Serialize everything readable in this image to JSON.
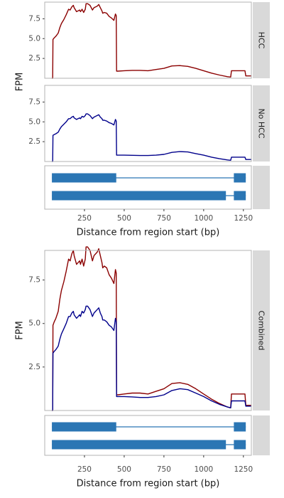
{
  "chart_data": [
    {
      "type": "line",
      "group": "Top figure",
      "ylabel": "FPM",
      "xlabel": "Distance from region start (bp)",
      "xlim": [
        0,
        1300
      ],
      "x_ticks": [
        250,
        500,
        750,
        1000,
        1250
      ],
      "panels": [
        {
          "strip": "HCC",
          "ylim": [
            0,
            9.6
          ],
          "y_ticks": [
            2.5,
            5.0,
            7.5
          ],
          "y_tick_labels": [
            "2.5",
            "5.0",
            "7.5"
          ],
          "series": [
            {
              "color": "#8b0000",
              "x": [
                45,
                50,
                52,
                60,
                70,
                85,
                95,
                105,
                120,
                135,
                150,
                160,
                170,
                180,
                185,
                200,
                210,
                220,
                225,
                235,
                245,
                255,
                260,
                270,
                285,
                300,
                310,
                320,
                330,
                340,
                350,
                360,
                365,
                375,
                390,
                405,
                420,
                435,
                445,
                450,
                452,
                460,
                500,
                550,
                600,
                650,
                700,
                750,
                800,
                850,
                900,
                950,
                1000,
                1050,
                1100,
                1150,
                1170,
                1175,
                1200,
                1230,
                1260,
                1265,
                1270,
                1300
              ],
              "y": [
                0,
                0,
                4.9,
                5.1,
                5.3,
                5.7,
                6.4,
                6.9,
                7.4,
                8.0,
                8.7,
                8.6,
                9.0,
                9.2,
                8.9,
                8.4,
                8.5,
                8.6,
                8.4,
                8.7,
                8.3,
                8.7,
                9.4,
                9.4,
                9.2,
                8.6,
                8.9,
                9.0,
                9.1,
                9.3,
                8.9,
                8.5,
                8.2,
                8.3,
                8.2,
                7.8,
                7.6,
                7.3,
                8.1,
                7.9,
                0.9,
                0.9,
                0.95,
                1.0,
                1.0,
                0.95,
                1.1,
                1.25,
                1.55,
                1.6,
                1.5,
                1.25,
                0.95,
                0.65,
                0.4,
                0.2,
                0.15,
                0.95,
                0.95,
                0.95,
                0.95,
                0.3,
                0.3,
                0.3
              ]
            }
          ]
        },
        {
          "strip": "No HCC",
          "ylim": [
            0,
            9.6
          ],
          "y_ticks": [
            2.5,
            5.0,
            7.5
          ],
          "y_tick_labels": [
            "2.5",
            "5.0",
            "7.5"
          ],
          "series": [
            {
              "color": "#00008b",
              "x": [
                45,
                50,
                52,
                60,
                70,
                85,
                95,
                105,
                120,
                135,
                150,
                160,
                170,
                180,
                185,
                200,
                210,
                220,
                225,
                235,
                245,
                255,
                260,
                270,
                285,
                300,
                310,
                320,
                330,
                340,
                350,
                360,
                365,
                375,
                390,
                405,
                420,
                435,
                445,
                450,
                452,
                460,
                500,
                550,
                600,
                650,
                700,
                750,
                800,
                850,
                900,
                950,
                1000,
                1050,
                1100,
                1150,
                1170,
                1175,
                1200,
                1230,
                1260,
                1265,
                1270,
                1300
              ],
              "y": [
                0,
                0,
                3.3,
                3.4,
                3.5,
                3.7,
                4.1,
                4.4,
                4.7,
                5.0,
                5.4,
                5.4,
                5.6,
                5.7,
                5.5,
                5.3,
                5.4,
                5.5,
                5.4,
                5.7,
                5.6,
                5.8,
                6.0,
                6.0,
                5.8,
                5.4,
                5.6,
                5.7,
                5.8,
                5.9,
                5.6,
                5.4,
                5.2,
                5.2,
                5.1,
                4.9,
                4.8,
                4.6,
                5.3,
                5.1,
                0.8,
                0.8,
                0.8,
                0.78,
                0.75,
                0.75,
                0.8,
                0.9,
                1.15,
                1.25,
                1.2,
                1.0,
                0.8,
                0.55,
                0.35,
                0.2,
                0.15,
                0.55,
                0.55,
                0.55,
                0.55,
                0.25,
                0.25,
                0.25
              ]
            }
          ]
        }
      ],
      "transcripts": [
        {
          "exons": [
            [
              45,
              450
            ],
            [
              1190,
              1265
            ]
          ]
        },
        {
          "exons": [
            [
              45,
              1140
            ],
            [
              1190,
              1265
            ]
          ]
        }
      ]
    },
    {
      "type": "line",
      "group": "Bottom figure",
      "ylabel": "FPM",
      "xlabel": "Distance from region start (bp)",
      "xlim": [
        0,
        1300
      ],
      "x_ticks": [
        250,
        500,
        750,
        1000,
        1250
      ],
      "panels": [
        {
          "strip": "Combined",
          "ylim": [
            0,
            9.2
          ],
          "y_ticks": [
            2.5,
            5.0,
            7.5
          ],
          "y_tick_labels": [
            "2.5",
            "5.0",
            "7.5"
          ],
          "series": [
            {
              "color": "#8b0000",
              "x": [
                45,
                50,
                52,
                60,
                70,
                85,
                95,
                105,
                120,
                135,
                150,
                160,
                170,
                180,
                185,
                200,
                210,
                220,
                225,
                235,
                245,
                255,
                260,
                270,
                285,
                300,
                310,
                320,
                330,
                340,
                350,
                360,
                365,
                375,
                390,
                405,
                420,
                435,
                445,
                450,
                452,
                460,
                500,
                550,
                600,
                650,
                700,
                750,
                800,
                850,
                900,
                950,
                1000,
                1050,
                1100,
                1150,
                1170,
                1175,
                1200,
                1230,
                1260,
                1265,
                1270,
                1300
              ],
              "y": [
                0,
                0,
                4.9,
                5.1,
                5.3,
                5.7,
                6.4,
                6.9,
                7.4,
                8.0,
                8.7,
                8.6,
                9.0,
                9.2,
                8.9,
                8.4,
                8.5,
                8.6,
                8.4,
                8.7,
                8.3,
                8.7,
                9.4,
                9.4,
                9.2,
                8.6,
                8.9,
                9.0,
                9.1,
                9.3,
                8.9,
                8.5,
                8.2,
                8.3,
                8.2,
                7.8,
                7.6,
                7.3,
                8.1,
                7.9,
                0.9,
                0.9,
                0.95,
                1.0,
                1.0,
                0.95,
                1.1,
                1.25,
                1.55,
                1.6,
                1.5,
                1.25,
                0.95,
                0.65,
                0.4,
                0.2,
                0.15,
                0.95,
                0.95,
                0.95,
                0.95,
                0.3,
                0.3,
                0.3
              ]
            },
            {
              "color": "#00008b",
              "x": [
                45,
                50,
                52,
                60,
                70,
                85,
                95,
                105,
                120,
                135,
                150,
                160,
                170,
                180,
                185,
                200,
                210,
                220,
                225,
                235,
                245,
                255,
                260,
                270,
                285,
                300,
                310,
                320,
                330,
                340,
                350,
                360,
                365,
                375,
                390,
                405,
                420,
                435,
                445,
                450,
                452,
                460,
                500,
                550,
                600,
                650,
                700,
                750,
                800,
                850,
                900,
                950,
                1000,
                1050,
                1100,
                1150,
                1170,
                1175,
                1200,
                1230,
                1260,
                1265,
                1270,
                1300
              ],
              "y": [
                0,
                0,
                3.3,
                3.4,
                3.5,
                3.7,
                4.1,
                4.4,
                4.7,
                5.0,
                5.4,
                5.4,
                5.6,
                5.7,
                5.5,
                5.3,
                5.4,
                5.5,
                5.4,
                5.7,
                5.6,
                5.8,
                6.0,
                6.0,
                5.8,
                5.4,
                5.6,
                5.7,
                5.8,
                5.9,
                5.6,
                5.4,
                5.2,
                5.2,
                5.1,
                4.9,
                4.8,
                4.6,
                5.3,
                5.1,
                0.8,
                0.8,
                0.8,
                0.78,
                0.75,
                0.75,
                0.8,
                0.9,
                1.15,
                1.25,
                1.2,
                1.0,
                0.8,
                0.55,
                0.35,
                0.2,
                0.15,
                0.55,
                0.55,
                0.55,
                0.55,
                0.25,
                0.25,
                0.25
              ]
            }
          ]
        }
      ],
      "transcripts": [
        {
          "exons": [
            [
              45,
              450
            ],
            [
              1190,
              1265
            ]
          ]
        },
        {
          "exons": [
            [
              45,
              1140
            ],
            [
              1190,
              1265
            ]
          ]
        }
      ]
    }
  ],
  "colors": {
    "hcc": "#8b0000",
    "no_hcc": "#00008b",
    "exon_fill": "#2b76b4",
    "strip_bg": "#d9d9d9",
    "panel_border": "#b3b3b3"
  }
}
